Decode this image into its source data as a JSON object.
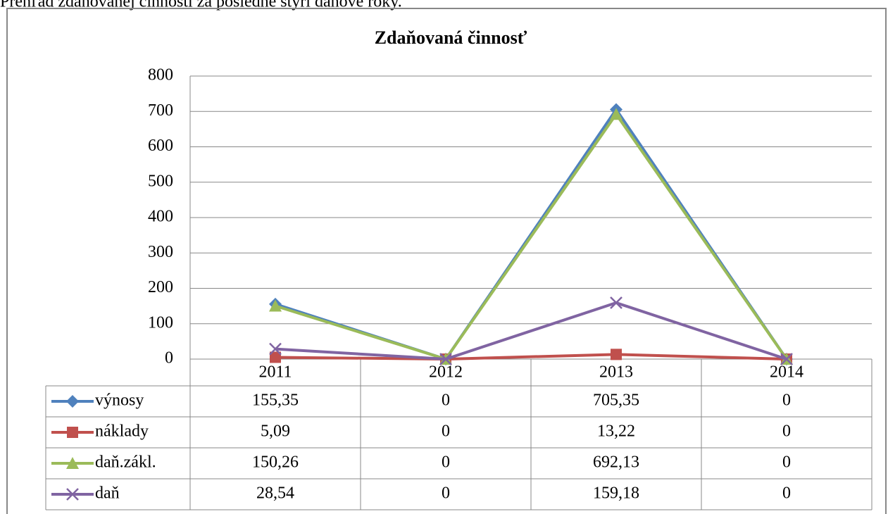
{
  "intro": "Prehľad zdaňovanej činnosti za posledné štyri daňové roky.",
  "chart_data": {
    "type": "line",
    "title": "Zdaňovaná činnosť",
    "categories": [
      "2011",
      "2012",
      "2013",
      "2014"
    ],
    "series": [
      {
        "name": "výnosy",
        "color": "#4f81bd",
        "marker": "diamond",
        "values": [
          155.35,
          0,
          705.35,
          0
        ],
        "value_labels": [
          "155,35",
          "0",
          "705,35",
          "0"
        ]
      },
      {
        "name": "náklady",
        "color": "#c0504d",
        "marker": "square",
        "values": [
          5.09,
          0,
          13.22,
          0
        ],
        "value_labels": [
          "5,09",
          "0",
          "13,22",
          "0"
        ]
      },
      {
        "name": "daň.zákl.",
        "color": "#9bbb59",
        "marker": "triangle",
        "values": [
          150.26,
          0,
          692.13,
          0
        ],
        "value_labels": [
          "150,26",
          "0",
          "692,13",
          "0"
        ]
      },
      {
        "name": "daň",
        "color": "#8064a2",
        "marker": "x",
        "values": [
          28.54,
          0,
          159.18,
          0
        ],
        "value_labels": [
          "28,54",
          "0",
          "159,18",
          "0"
        ]
      }
    ],
    "ylim": [
      0,
      800
    ],
    "yticks": [
      0,
      100,
      200,
      300,
      400,
      500,
      600,
      700,
      800
    ],
    "grid": true,
    "data_table": true
  }
}
